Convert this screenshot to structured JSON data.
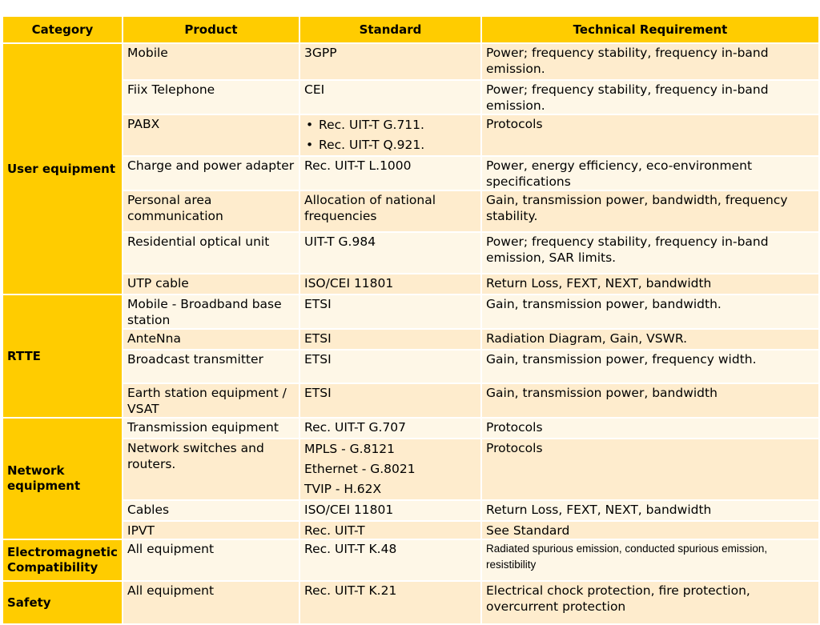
{
  "headers": [
    "Category",
    "Product",
    "Standard",
    "Technical Requirement"
  ],
  "categories": {
    "user_equipment": "User equipment",
    "rtte": "RTTE",
    "network_equipment": "Network equipment",
    "emc": "Electromagnetic Compatibility",
    "safety": "Safety"
  },
  "rows": [
    {
      "product": "Mobile",
      "standard": "3GPP",
      "requirement": "Power; frequency stability, frequency in-band emission."
    },
    {
      "product": "Fiix Telephone",
      "standard": "CEI",
      "requirement": "Power; frequency stability, frequency in-band emission."
    },
    {
      "product": "PABX",
      "standard_list": [
        "Rec. UIT-T G.711.",
        "Rec. UIT-T Q.921."
      ],
      "requirement": "Protocols"
    },
    {
      "product": "Charge and power adapter",
      "standard": "Rec. UIT-T L.1000",
      "requirement": "Power, energy efficiency, eco-environment specifications"
    },
    {
      "product": "Personal area communication",
      "standard": "Allocation of national frequencies",
      "requirement": "Gain, transmission power, bandwidth, frequency stability."
    },
    {
      "product": "Residential optical unit",
      "standard": "UIT-T G.984",
      "requirement": "Power; frequency stability, frequency in-band emission, SAR limits."
    },
    {
      "product": "UTP cable",
      "standard": "ISO/CEI 11801",
      "requirement": "Return Loss, FEXT, NEXT, bandwidth"
    },
    {
      "product": "Mobile - Broadband base station",
      "standard": "ETSI",
      "requirement": "Gain, transmission power, bandwidth."
    },
    {
      "product": "AnteNna",
      "standard": "ETSI",
      "requirement": "Radiation Diagram, Gain, VSWR."
    },
    {
      "product": "Broadcast transmitter",
      "standard": "ETSI",
      "requirement": "Gain, transmission power, frequency width."
    },
    {
      "product": "Earth station equipment / VSAT",
      "standard": "ETSI",
      "requirement": "Gain, transmission power, bandwidth"
    },
    {
      "product": "Transmission equipment",
      "standard": "Rec. UIT-T G.707",
      "requirement": "Protocols"
    },
    {
      "product": "Network switches and routers.",
      "standard_lines": [
        "MPLS - G.8121",
        "Ethernet - G.8021",
        "TVIP - H.62X"
      ],
      "requirement": "Protocols"
    },
    {
      "product": "Cables",
      "standard": "ISO/CEI 11801",
      "requirement": "Return Loss, FEXT, NEXT, bandwidth"
    },
    {
      "product": "IPVT",
      "standard": "Rec. UIT-T",
      "requirement": "See Standard"
    },
    {
      "product": "All equipment",
      "standard": "Rec. UIT-T K.48",
      "requirement": "Radiated spurious emission, conducted spurious emission, resistibility"
    },
    {
      "product": "All equipment",
      "standard": "Rec. UIT-T K.21",
      "requirement": "Electrical chock protection, fire protection, overcurrent protection"
    }
  ]
}
